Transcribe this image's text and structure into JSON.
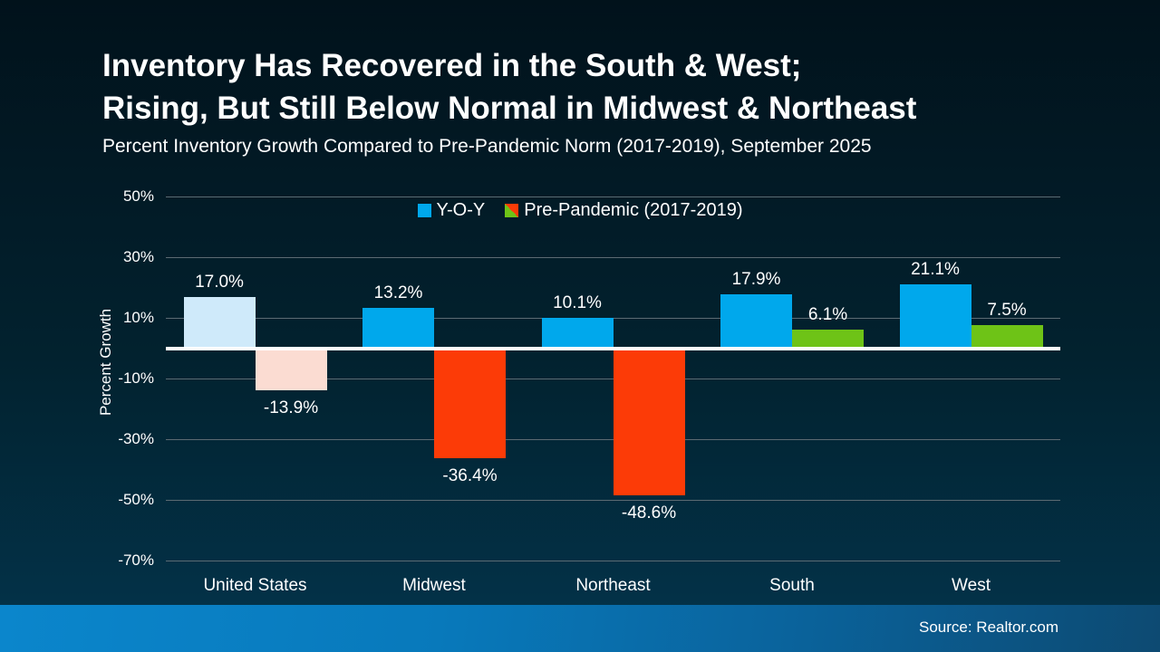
{
  "header": {
    "title_line1": "Inventory Has Recovered in the South & West;",
    "title_line2": "Rising, But Still Below Normal in Midwest & Northeast",
    "subtitle": "Percent Inventory Growth Compared to Pre-Pandemic Norm (2017-2019), September 2025"
  },
  "footer": {
    "source": "Source: Realtor.com"
  },
  "colors": {
    "background_top": "#01121b",
    "background_bottom": "#043950",
    "yoy_blue": "#00a8ec",
    "yoy_blue_muted_us": "#cfeafa",
    "prepandemic_red": "#fc3b07",
    "prepandemic_red_muted_us": "#fbdcd2",
    "prepandemic_green": "#6ec317",
    "gridline": "#5c6a73",
    "zero_line": "#ffffff",
    "text": "#ffffff",
    "footer_blue_left": "#0b86cc",
    "footer_blue_right": "#0d4a72"
  },
  "chart_data": {
    "type": "bar",
    "title": "Inventory Has Recovered in the South & West; Rising, But Still Below Normal in Midwest & Northeast",
    "subtitle": "Percent Inventory Growth Compared to Pre-Pandemic Norm (2017-2019), September 2025",
    "categories": [
      "United States",
      "Midwest",
      "Northeast",
      "South",
      "West"
    ],
    "series": [
      {
        "name": "Y-O-Y",
        "values": [
          17.0,
          13.2,
          10.1,
          17.9,
          21.1
        ],
        "labels": [
          "17.0%",
          "13.2%",
          "10.1%",
          "17.9%",
          "21.1%"
        ],
        "bar_colors": [
          "#cfeafa",
          "#00a8ec",
          "#00a8ec",
          "#00a8ec",
          "#00a8ec"
        ]
      },
      {
        "name": "Pre-Pandemic (2017-2019)",
        "values": [
          -13.9,
          -36.4,
          -48.6,
          6.1,
          7.5
        ],
        "labels": [
          "-13.9%",
          "-36.4%",
          "-48.6%",
          "6.1%",
          "7.5%"
        ],
        "bar_colors": [
          "#fbdcd2",
          "#fc3b07",
          "#fc3b07",
          "#6ec317",
          "#6ec317"
        ]
      }
    ],
    "xlabel": "",
    "ylabel": "Percent Growth",
    "yticks": [
      50,
      30,
      10,
      -10,
      -30,
      -50,
      -70
    ],
    "ytick_labels": [
      "50%",
      "30%",
      "10%",
      "-10%",
      "-30%",
      "-50%",
      "-70%"
    ],
    "ylim": [
      -70,
      50
    ],
    "grid": true,
    "legend_position": "top-center",
    "legend": [
      {
        "label": "Y-O-Y",
        "swatch_colors": [
          "#00a8ec"
        ]
      },
      {
        "label": "Pre-Pandemic (2017-2019)",
        "swatch_colors": [
          "#fc3b07",
          "#6ec317"
        ]
      }
    ]
  }
}
